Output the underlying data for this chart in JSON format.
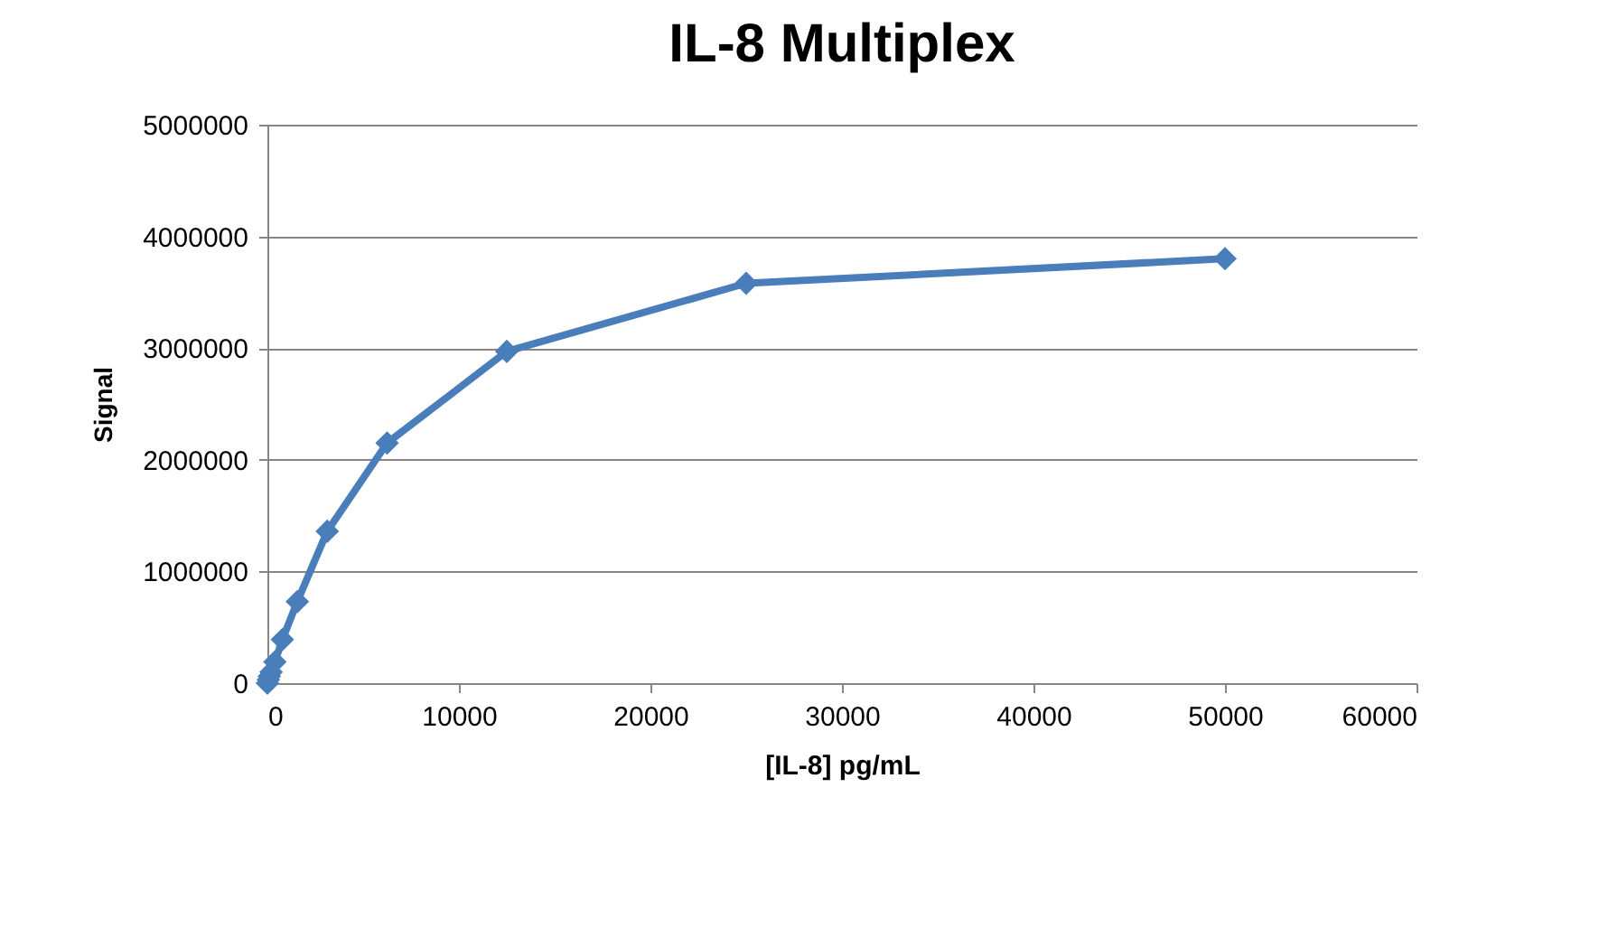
{
  "chart_data": {
    "type": "line",
    "title": "IL-8 Multiplex",
    "xlabel": "[IL-8] pg/mL",
    "ylabel": "Signal",
    "x": [
      0,
      48.8,
      97.7,
      195,
      391,
      781,
      1563,
      3125,
      6250,
      12500,
      25000,
      50000
    ],
    "series": [
      {
        "color": "#4a7ebb",
        "values": [
          0,
          30000,
          60000,
          100000,
          190000,
          390000,
          730000,
          1360000,
          2150000,
          2970000,
          3580000,
          3800000
        ]
      }
    ],
    "xlim": [
      0,
      60000
    ],
    "xticks": [
      0,
      10000,
      20000,
      30000,
      40000,
      50000,
      60000
    ],
    "ylim": [
      0,
      5000000
    ],
    "yticks": [
      0,
      1000000,
      2000000,
      3000000,
      4000000,
      5000000
    ],
    "grid": "y",
    "marker": "diamond",
    "line_style": "solid"
  }
}
